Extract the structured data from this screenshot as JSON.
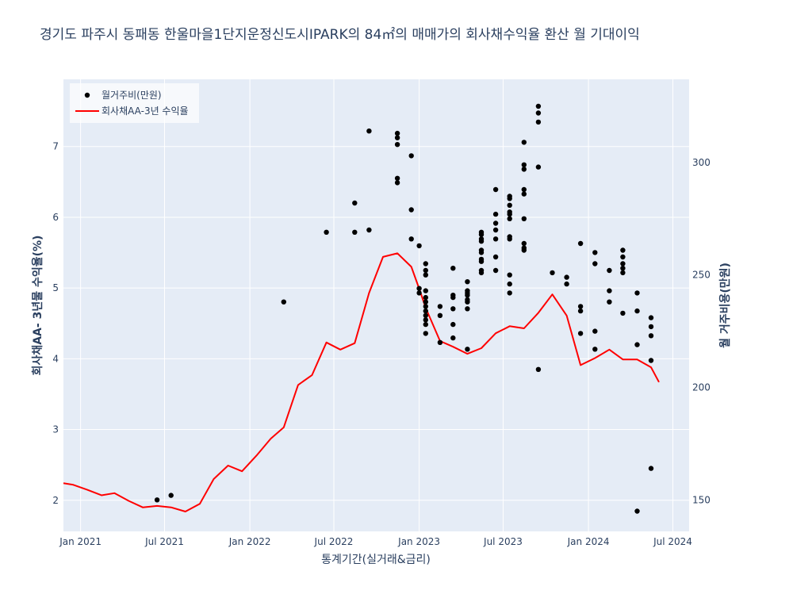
{
  "chart_data": {
    "type": "scatter+line",
    "title": "경기도 파주시 동패동 한울마을1단지운정신도시IPARK의 84㎡의 매매가의 회사채수익율 환산 월 기대이익",
    "xlabel": "통계기간(실거래&금리)",
    "ylabel_left": "회사채AA- 3년물 수익율(%)",
    "ylabel_right": "월 거주비용(만원)",
    "x_tick_labels": [
      "Jan 2021",
      "Jul 2021",
      "Jan 2022",
      "Jul 2022",
      "Jan 2023",
      "Jul 2023",
      "Jan 2024",
      "Jul 2024"
    ],
    "y_left_ticks": [
      2,
      3,
      4,
      5,
      6,
      7
    ],
    "y_right_ticks": [
      150,
      200,
      250,
      300
    ],
    "xlim": [
      "2020-11-25",
      "2024-08-05"
    ],
    "ylim_left": [
      1.56,
      7.95
    ],
    "ylim_right": [
      136,
      337
    ],
    "legend_position": "top-left",
    "grid": true,
    "colors": {
      "plot_bg": "#e5ecf6",
      "grid": "#ffffff",
      "axis_text": "#2a3f5f",
      "line": "#ff0000",
      "scatter": "#000000"
    },
    "series": [
      {
        "name": "월거주비(만원)",
        "kind": "scatter",
        "axis": "right",
        "points": [
          [
            "2021-06-15",
            150
          ],
          [
            "2021-07-15",
            152
          ],
          [
            "2022-03-15",
            238
          ],
          [
            "2022-06-15",
            269
          ],
          [
            "2022-08-15",
            269
          ],
          [
            "2022-08-15",
            282
          ],
          [
            "2022-09-15",
            270
          ],
          [
            "2022-09-15",
            314
          ],
          [
            "2022-11-15",
            291
          ],
          [
            "2022-11-15",
            293
          ],
          [
            "2022-11-15",
            308
          ],
          [
            "2022-11-15",
            311
          ],
          [
            "2022-11-15",
            313
          ],
          [
            "2022-12-15",
            266
          ],
          [
            "2022-12-15",
            279
          ],
          [
            "2022-12-15",
            303
          ],
          [
            "2023-01-01",
            242
          ],
          [
            "2023-01-01",
            244
          ],
          [
            "2023-01-01",
            263
          ],
          [
            "2023-01-15",
            224
          ],
          [
            "2023-01-15",
            228
          ],
          [
            "2023-01-15",
            230
          ],
          [
            "2023-01-15",
            232
          ],
          [
            "2023-01-15",
            234
          ],
          [
            "2023-01-15",
            236
          ],
          [
            "2023-01-15",
            238
          ],
          [
            "2023-01-15",
            240
          ],
          [
            "2023-01-15",
            243
          ],
          [
            "2023-01-15",
            250
          ],
          [
            "2023-01-15",
            252
          ],
          [
            "2023-01-15",
            255
          ],
          [
            "2023-02-15",
            220
          ],
          [
            "2023-02-15",
            232
          ],
          [
            "2023-02-15",
            236
          ],
          [
            "2023-03-15",
            222
          ],
          [
            "2023-03-15",
            228
          ],
          [
            "2023-03-15",
            235
          ],
          [
            "2023-03-15",
            240
          ],
          [
            "2023-03-15",
            241
          ],
          [
            "2023-03-15",
            253
          ],
          [
            "2023-04-15",
            217
          ],
          [
            "2023-04-15",
            235
          ],
          [
            "2023-04-15",
            238
          ],
          [
            "2023-04-15",
            239
          ],
          [
            "2023-04-15",
            241
          ],
          [
            "2023-04-15",
            242
          ],
          [
            "2023-04-15",
            243
          ],
          [
            "2023-04-15",
            247
          ],
          [
            "2023-05-15",
            251
          ],
          [
            "2023-05-15",
            252
          ],
          [
            "2023-05-15",
            256
          ],
          [
            "2023-05-15",
            257
          ],
          [
            "2023-05-15",
            260
          ],
          [
            "2023-05-15",
            261
          ],
          [
            "2023-05-15",
            265
          ],
          [
            "2023-05-15",
            266
          ],
          [
            "2023-05-15",
            268
          ],
          [
            "2023-05-15",
            269
          ],
          [
            "2023-06-15",
            252
          ],
          [
            "2023-06-15",
            258
          ],
          [
            "2023-06-15",
            266
          ],
          [
            "2023-06-15",
            270
          ],
          [
            "2023-06-15",
            273
          ],
          [
            "2023-06-15",
            277
          ],
          [
            "2023-06-15",
            288
          ],
          [
            "2023-07-15",
            242
          ],
          [
            "2023-07-15",
            246
          ],
          [
            "2023-07-15",
            250
          ],
          [
            "2023-07-15",
            266
          ],
          [
            "2023-07-15",
            267
          ],
          [
            "2023-07-15",
            275
          ],
          [
            "2023-07-15",
            277
          ],
          [
            "2023-07-15",
            278
          ],
          [
            "2023-07-15",
            281
          ],
          [
            "2023-07-15",
            284
          ],
          [
            "2023-07-15",
            285
          ],
          [
            "2023-08-15",
            261
          ],
          [
            "2023-08-15",
            262
          ],
          [
            "2023-08-15",
            264
          ],
          [
            "2023-08-15",
            275
          ],
          [
            "2023-08-15",
            286
          ],
          [
            "2023-08-15",
            288
          ],
          [
            "2023-08-15",
            297
          ],
          [
            "2023-08-15",
            299
          ],
          [
            "2023-08-15",
            309
          ],
          [
            "2023-09-15",
            208
          ],
          [
            "2023-09-15",
            298
          ],
          [
            "2023-09-15",
            318
          ],
          [
            "2023-09-15",
            322
          ],
          [
            "2023-09-15",
            325
          ],
          [
            "2023-10-15",
            251
          ],
          [
            "2023-11-15",
            246
          ],
          [
            "2023-11-15",
            249
          ],
          [
            "2023-12-15",
            224
          ],
          [
            "2023-12-15",
            234
          ],
          [
            "2023-12-15",
            236
          ],
          [
            "2023-12-15",
            264
          ],
          [
            "2024-01-15",
            217
          ],
          [
            "2024-01-15",
            225
          ],
          [
            "2024-01-15",
            255
          ],
          [
            "2024-01-15",
            260
          ],
          [
            "2024-02-15",
            238
          ],
          [
            "2024-02-15",
            243
          ],
          [
            "2024-02-15",
            252
          ],
          [
            "2024-03-15",
            233
          ],
          [
            "2024-03-15",
            251
          ],
          [
            "2024-03-15",
            253
          ],
          [
            "2024-03-15",
            255
          ],
          [
            "2024-03-15",
            258
          ],
          [
            "2024-03-15",
            261
          ],
          [
            "2024-04-15",
            145
          ],
          [
            "2024-04-15",
            219
          ],
          [
            "2024-04-15",
            234
          ],
          [
            "2024-04-15",
            242
          ],
          [
            "2024-05-15",
            164
          ],
          [
            "2024-05-15",
            212
          ],
          [
            "2024-05-15",
            223
          ],
          [
            "2024-05-15",
            227
          ],
          [
            "2024-05-15",
            231
          ]
        ]
      },
      {
        "name": "회사채AA-3년 수익율",
        "kind": "line",
        "axis": "left",
        "points": [
          [
            "2020-11-25",
            2.24
          ],
          [
            "2020-12-15",
            2.22
          ],
          [
            "2021-01-15",
            2.15
          ],
          [
            "2021-02-15",
            2.07
          ],
          [
            "2021-03-15",
            2.1
          ],
          [
            "2021-04-15",
            1.99
          ],
          [
            "2021-05-15",
            1.9
          ],
          [
            "2021-06-15",
            1.92
          ],
          [
            "2021-07-15",
            1.9
          ],
          [
            "2021-08-15",
            1.84
          ],
          [
            "2021-09-15",
            1.95
          ],
          [
            "2021-10-15",
            2.3
          ],
          [
            "2021-11-15",
            2.49
          ],
          [
            "2021-12-15",
            2.41
          ],
          [
            "2022-01-15",
            2.63
          ],
          [
            "2022-02-15",
            2.87
          ],
          [
            "2022-03-15",
            3.03
          ],
          [
            "2022-04-15",
            3.63
          ],
          [
            "2022-05-15",
            3.77
          ],
          [
            "2022-06-15",
            4.23
          ],
          [
            "2022-07-15",
            4.13
          ],
          [
            "2022-08-15",
            4.22
          ],
          [
            "2022-09-15",
            4.93
          ],
          [
            "2022-10-15",
            5.44
          ],
          [
            "2022-11-15",
            5.49
          ],
          [
            "2022-12-15",
            5.3
          ],
          [
            "2023-01-01",
            4.99
          ],
          [
            "2023-01-15",
            4.72
          ],
          [
            "2023-02-15",
            4.25
          ],
          [
            "2023-03-15",
            4.17
          ],
          [
            "2023-04-15",
            4.07
          ],
          [
            "2023-05-15",
            4.15
          ],
          [
            "2023-06-15",
            4.36
          ],
          [
            "2023-07-15",
            4.46
          ],
          [
            "2023-08-15",
            4.43
          ],
          [
            "2023-09-15",
            4.65
          ],
          [
            "2023-10-15",
            4.91
          ],
          [
            "2023-11-15",
            4.61
          ],
          [
            "2023-12-15",
            3.91
          ],
          [
            "2024-01-15",
            4.01
          ],
          [
            "2024-02-15",
            4.13
          ],
          [
            "2024-03-15",
            3.99
          ],
          [
            "2024-04-15",
            3.99
          ],
          [
            "2024-05-15",
            3.88
          ],
          [
            "2024-06-01",
            3.67
          ]
        ]
      }
    ]
  }
}
